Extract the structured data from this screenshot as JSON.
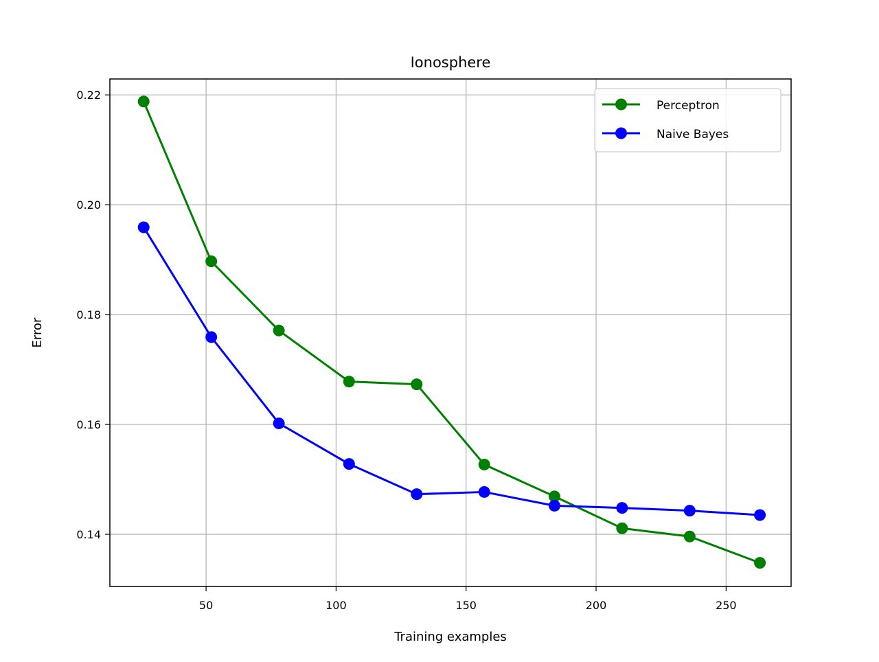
{
  "chart_data": {
    "type": "line",
    "title": "Ionosphere",
    "xlabel": "Training examples",
    "ylabel": "Error",
    "xlim": [
      13,
      275
    ],
    "ylim": [
      0.1305,
      0.2229
    ],
    "xticks": [
      50,
      100,
      150,
      200,
      250
    ],
    "yticks": [
      0.14,
      0.16,
      0.18,
      0.2,
      0.22
    ],
    "xtick_labels": [
      "50",
      "100",
      "150",
      "200",
      "250"
    ],
    "ytick_labels": [
      "0.14",
      "0.16",
      "0.18",
      "0.20",
      "0.22"
    ],
    "grid": true,
    "legend_position": "top-right",
    "x": [
      26,
      52,
      78,
      105,
      131,
      157,
      184,
      210,
      236,
      263
    ],
    "series": [
      {
        "name": "Perceptron",
        "color": "#008000",
        "values": [
          0.2188,
          0.1897,
          0.1771,
          0.1678,
          0.1673,
          0.1527,
          0.1469,
          0.1411,
          0.1396,
          0.1348
        ]
      },
      {
        "name": "Naive Bayes",
        "color": "#0000ff",
        "values": [
          0.1959,
          0.1759,
          0.1602,
          0.1528,
          0.1473,
          0.1477,
          0.1452,
          0.1448,
          0.1443,
          0.1435
        ]
      }
    ]
  }
}
